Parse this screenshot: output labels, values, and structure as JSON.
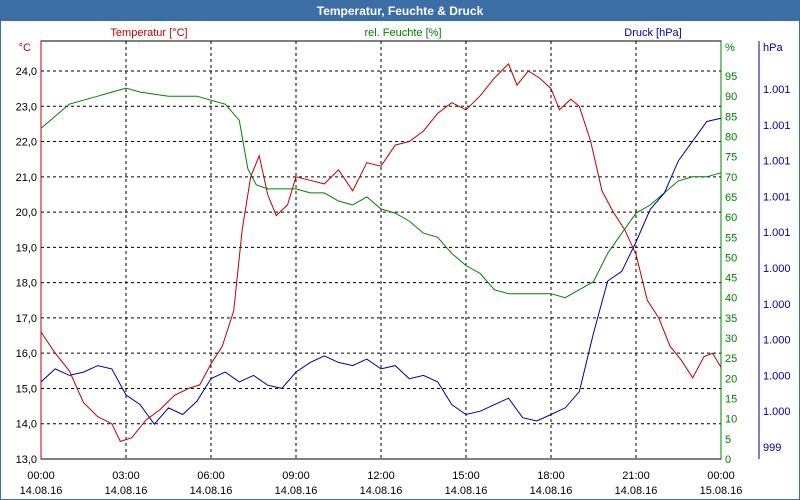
{
  "window_title": "Temperatur, Feuchte & Druck",
  "chart_data": {
    "type": "line",
    "x_ticks": [
      {
        "time": "00:00",
        "date": "14.08.16"
      },
      {
        "time": "03:00",
        "date": "14.08.16"
      },
      {
        "time": "06:00",
        "date": "14.08.16"
      },
      {
        "time": "09:00",
        "date": "14.08.16"
      },
      {
        "time": "12:00",
        "date": "14.08.16"
      },
      {
        "time": "15:00",
        "date": "14.08.16"
      },
      {
        "time": "18:00",
        "date": "14.08.16"
      },
      {
        "time": "21:00",
        "date": "14.08.16"
      },
      {
        "time": "00:00",
        "date": "15.08.16"
      }
    ],
    "x_range_hours": [
      0,
      24
    ],
    "grid": true,
    "axes": {
      "temp": {
        "unit": "°C",
        "min": 13.0,
        "max": 24.0,
        "ticks": [
          "13,0",
          "14,0",
          "15,0",
          "16,0",
          "17,0",
          "18,0",
          "19,0",
          "20,0",
          "21,0",
          "22,0",
          "23,0",
          "24,0"
        ]
      },
      "hum": {
        "unit": "%",
        "min": 0,
        "max": 95,
        "ticks": [
          "0",
          "5",
          "10",
          "15",
          "20",
          "25",
          "30",
          "35",
          "40",
          "45",
          "50",
          "55",
          "60",
          "65",
          "70",
          "75",
          "80",
          "85",
          "90",
          "95"
        ]
      },
      "press": {
        "unit": "hPa",
        "min": 0,
        "max": 11,
        "ticks": [
          "999",
          "1.000",
          "1.000",
          "1.000",
          "1.000",
          "1.000",
          "1.001",
          "1.001",
          "1.001",
          "1.001",
          "1.001"
        ]
      }
    },
    "series": [
      {
        "name": "Temperatur [°C]",
        "axis": "temp",
        "color": "#c00000",
        "points": [
          [
            0,
            16.6
          ],
          [
            0.5,
            16.0
          ],
          [
            1,
            15.5
          ],
          [
            1.5,
            14.6
          ],
          [
            2,
            14.2
          ],
          [
            2.5,
            14.0
          ],
          [
            2.8,
            13.5
          ],
          [
            3.2,
            13.6
          ],
          [
            3.7,
            14.1
          ],
          [
            4.2,
            14.4
          ],
          [
            4.7,
            14.8
          ],
          [
            5.2,
            15.0
          ],
          [
            5.6,
            15.1
          ],
          [
            6.0,
            15.7
          ],
          [
            6.4,
            16.2
          ],
          [
            6.8,
            17.2
          ],
          [
            7.1,
            19.5
          ],
          [
            7.4,
            21.0
          ],
          [
            7.7,
            21.6
          ],
          [
            8.0,
            20.5
          ],
          [
            8.3,
            19.9
          ],
          [
            8.7,
            20.2
          ],
          [
            9.0,
            21.0
          ],
          [
            9.5,
            20.9
          ],
          [
            10.0,
            20.8
          ],
          [
            10.5,
            21.2
          ],
          [
            11.0,
            20.6
          ],
          [
            11.5,
            21.4
          ],
          [
            12.0,
            21.3
          ],
          [
            12.5,
            21.9
          ],
          [
            13.0,
            22.0
          ],
          [
            13.5,
            22.3
          ],
          [
            14.0,
            22.8
          ],
          [
            14.5,
            23.1
          ],
          [
            15.0,
            22.9
          ],
          [
            15.5,
            23.3
          ],
          [
            16.0,
            23.8
          ],
          [
            16.5,
            24.2
          ],
          [
            16.8,
            23.6
          ],
          [
            17.2,
            24.0
          ],
          [
            17.6,
            23.8
          ],
          [
            18.0,
            23.5
          ],
          [
            18.3,
            22.9
          ],
          [
            18.7,
            23.2
          ],
          [
            19.0,
            23.0
          ],
          [
            19.4,
            22.0
          ],
          [
            19.8,
            20.6
          ],
          [
            20.2,
            20.0
          ],
          [
            20.6,
            19.5
          ],
          [
            21.0,
            18.8
          ],
          [
            21.4,
            17.5
          ],
          [
            21.8,
            17.0
          ],
          [
            22.2,
            16.2
          ],
          [
            22.6,
            15.8
          ],
          [
            23.0,
            15.3
          ],
          [
            23.4,
            15.9
          ],
          [
            23.7,
            16.0
          ],
          [
            24.0,
            15.6
          ]
        ]
      },
      {
        "name": "rel. Feuchte [%]",
        "axis": "hum",
        "color": "#008000",
        "points": [
          [
            0,
            82
          ],
          [
            0.5,
            85
          ],
          [
            1,
            88
          ],
          [
            1.5,
            89
          ],
          [
            2,
            90
          ],
          [
            2.5,
            91
          ],
          [
            3,
            92
          ],
          [
            3.5,
            91
          ],
          [
            4,
            90.5
          ],
          [
            4.5,
            90
          ],
          [
            5,
            90
          ],
          [
            5.5,
            90
          ],
          [
            6,
            89
          ],
          [
            6.5,
            88
          ],
          [
            7,
            84
          ],
          [
            7.3,
            72
          ],
          [
            7.6,
            68
          ],
          [
            8,
            67
          ],
          [
            8.5,
            67
          ],
          [
            9,
            67
          ],
          [
            9.5,
            66
          ],
          [
            10,
            66
          ],
          [
            10.5,
            64
          ],
          [
            11,
            63
          ],
          [
            11.5,
            65
          ],
          [
            12,
            62
          ],
          [
            12.5,
            61
          ],
          [
            13,
            59
          ],
          [
            13.5,
            56
          ],
          [
            14,
            55
          ],
          [
            14.5,
            51
          ],
          [
            15,
            48
          ],
          [
            15.5,
            46
          ],
          [
            16,
            42
          ],
          [
            16.5,
            41
          ],
          [
            17,
            41
          ],
          [
            17.5,
            41
          ],
          [
            18,
            41
          ],
          [
            18.5,
            40
          ],
          [
            19,
            42
          ],
          [
            19.5,
            44
          ],
          [
            20,
            51
          ],
          [
            20.5,
            56
          ],
          [
            21,
            61
          ],
          [
            21.5,
            63
          ],
          [
            22,
            66
          ],
          [
            22.5,
            69
          ],
          [
            23,
            70
          ],
          [
            23.5,
            70
          ],
          [
            24,
            71
          ]
        ]
      },
      {
        "name": "Druck [hPa]",
        "axis": "press",
        "color": "#000099",
        "points": [
          [
            0,
            2.0
          ],
          [
            0.5,
            2.4
          ],
          [
            1,
            2.2
          ],
          [
            1.5,
            2.3
          ],
          [
            2,
            2.5
          ],
          [
            2.5,
            2.4
          ],
          [
            3,
            1.6
          ],
          [
            3.5,
            1.3
          ],
          [
            4,
            0.7
          ],
          [
            4.5,
            1.2
          ],
          [
            5,
            1.0
          ],
          [
            5.5,
            1.4
          ],
          [
            6,
            2.1
          ],
          [
            6.5,
            2.3
          ],
          [
            7,
            2.0
          ],
          [
            7.5,
            2.2
          ],
          [
            8,
            1.9
          ],
          [
            8.5,
            1.8
          ],
          [
            9,
            2.3
          ],
          [
            9.5,
            2.6
          ],
          [
            10,
            2.8
          ],
          [
            10.5,
            2.6
          ],
          [
            11,
            2.5
          ],
          [
            11.5,
            2.7
          ],
          [
            12,
            2.4
          ],
          [
            12.5,
            2.5
          ],
          [
            13,
            2.1
          ],
          [
            13.5,
            2.2
          ],
          [
            14,
            2.0
          ],
          [
            14.5,
            1.3
          ],
          [
            15,
            1.0
          ],
          [
            15.5,
            1.1
          ],
          [
            16,
            1.3
          ],
          [
            16.5,
            1.5
          ],
          [
            17,
            0.9
          ],
          [
            17.5,
            0.8
          ],
          [
            18,
            1.0
          ],
          [
            18.5,
            1.2
          ],
          [
            19,
            1.7
          ],
          [
            19.5,
            3.5
          ],
          [
            20,
            5.1
          ],
          [
            20.5,
            5.4
          ],
          [
            21,
            6.3
          ],
          [
            21.5,
            7.3
          ],
          [
            22,
            7.8
          ],
          [
            22.5,
            8.8
          ],
          [
            23,
            9.4
          ],
          [
            23.5,
            10.0
          ],
          [
            24,
            10.1
          ]
        ]
      }
    ]
  }
}
